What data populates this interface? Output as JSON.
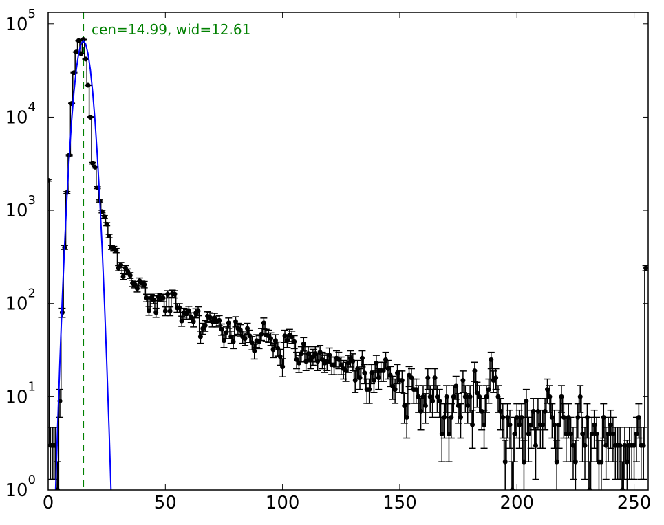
{
  "chart_data": {
    "type": "errorbar",
    "annotation": "cen=14.99, wid=12.61",
    "annotation_color": "#008000",
    "xlim": [
      0,
      256
    ],
    "xticks": [
      0,
      50,
      100,
      150,
      200,
      250
    ],
    "ylim": [
      1,
      133000
    ],
    "log_y": true,
    "yticks": [
      {
        "value": 1,
        "label": "10^0"
      },
      {
        "value": 10,
        "label": "10^1"
      },
      {
        "value": 100,
        "label": "10^2"
      },
      {
        "value": 1000,
        "label": "10^3"
      },
      {
        "value": 10000,
        "label": "10^4"
      },
      {
        "value": 100000,
        "label": "10^5"
      }
    ],
    "vline": {
      "x": 14.99,
      "color": "#008000",
      "dashed": true
    },
    "series": [
      {
        "kind": "errorbar",
        "color": "#000000",
        "x": [
          0,
          1,
          2,
          3,
          4,
          5,
          6,
          7,
          8,
          9,
          10,
          11,
          12,
          13,
          14,
          15,
          16,
          17,
          18,
          19,
          20,
          21,
          22,
          23,
          24,
          25,
          26,
          27,
          28,
          29,
          30,
          31,
          32,
          33,
          34,
          35,
          36,
          37,
          38,
          39,
          40,
          41,
          42,
          43,
          44,
          45,
          46,
          47,
          48,
          49,
          50,
          51,
          52,
          53,
          54,
          55,
          56,
          57,
          58,
          59,
          60,
          61,
          62,
          63,
          64,
          65,
          66,
          67,
          68,
          69,
          70,
          71,
          72,
          73,
          74,
          75,
          76,
          77,
          78,
          79,
          80,
          81,
          82,
          83,
          84,
          85,
          86,
          87,
          88,
          89,
          90,
          91,
          92,
          93,
          94,
          95,
          96,
          97,
          98,
          99,
          100,
          101,
          102,
          103,
          104,
          105,
          106,
          107,
          108,
          109,
          110,
          111,
          112,
          113,
          114,
          115,
          116,
          117,
          118,
          119,
          120,
          121,
          122,
          123,
          124,
          125,
          126,
          127,
          128,
          129,
          130,
          131,
          132,
          133,
          134,
          135,
          136,
          137,
          138,
          139,
          140,
          141,
          142,
          143,
          144,
          145,
          146,
          147,
          148,
          149,
          150,
          151,
          152,
          153,
          154,
          155,
          156,
          157,
          158,
          159,
          160,
          161,
          162,
          163,
          164,
          165,
          166,
          167,
          168,
          169,
          170,
          171,
          172,
          173,
          174,
          175,
          176,
          177,
          178,
          179,
          180,
          181,
          182,
          183,
          184,
          185,
          186,
          187,
          188,
          189,
          190,
          191,
          192,
          193,
          194,
          195,
          196,
          197,
          198,
          199,
          200,
          201,
          202,
          203,
          204,
          205,
          206,
          207,
          208,
          209,
          210,
          211,
          212,
          213,
          214,
          215,
          216,
          217,
          218,
          219,
          220,
          221,
          222,
          223,
          224,
          225,
          226,
          227,
          228,
          229,
          230,
          231,
          232,
          233,
          234,
          235,
          236,
          237,
          238,
          239,
          240,
          241,
          242,
          243,
          244,
          245,
          246,
          247,
          248,
          249,
          250,
          251,
          252,
          253,
          254,
          255
        ],
        "values": [
          2100,
          3,
          3,
          3,
          1,
          9,
          80,
          400,
          1550,
          3900,
          14000,
          30000,
          50000,
          66000,
          48000,
          68000,
          42000,
          22000,
          10000,
          3200,
          2900,
          1750,
          1260,
          970,
          850,
          710,
          530,
          400,
          390,
          370,
          240,
          260,
          195,
          240,
          220,
          200,
          165,
          160,
          145,
          175,
          165,
          160,
          115,
          84,
          115,
          110,
          80,
          118,
          115,
          115,
          83,
          126,
          83,
          128,
          126,
          90,
          90,
          65,
          80,
          77,
          84,
          71,
          64,
          79,
          83,
          44,
          54,
          58,
          73,
          71,
          64,
          70,
          64,
          66,
          53,
          40,
          49,
          62,
          44,
          39,
          64,
          54,
          52,
          44,
          42,
          54,
          45,
          38,
          31,
          40,
          39,
          47,
          62,
          46,
          45,
          42,
          32,
          40,
          33,
          27,
          21,
          45,
          40,
          46,
          44,
          39,
          25,
          23,
          29,
          37,
          24,
          29,
          25,
          27,
          29,
          24,
          30,
          25,
          23,
          24,
          28,
          22,
          22,
          26,
          25,
          22,
          20,
          19,
          23,
          26,
          24,
          15,
          20,
          16,
          26,
          18,
          12,
          12,
          18,
          15,
          23,
          16,
          19,
          19,
          25,
          20,
          17,
          13,
          12,
          18,
          15,
          15,
          8,
          6,
          17,
          16,
          12,
          12,
          10,
          7,
          10,
          8,
          16,
          10,
          9,
          16,
          10,
          9,
          4,
          6,
          10,
          4,
          6,
          10,
          13,
          8,
          6,
          15,
          10,
          8,
          10,
          5,
          19,
          11,
          10,
          7,
          5,
          10,
          12,
          25,
          15,
          16,
          10,
          7,
          6,
          2,
          6,
          5,
          1,
          4,
          6,
          5,
          6,
          2,
          9,
          4,
          5,
          7,
          3,
          7,
          5,
          5,
          7,
          12,
          10,
          6,
          5,
          2,
          5,
          10,
          6,
          4,
          6,
          4,
          3,
          2,
          6,
          10,
          4,
          3,
          6,
          1,
          4,
          5,
          4,
          2,
          2,
          6,
          3,
          4,
          5,
          4,
          3,
          3,
          3,
          1,
          3,
          2,
          3,
          3,
          3,
          4,
          6,
          3,
          3,
          240
        ],
        "errors": [
          46,
          1.7,
          1.7,
          1.7,
          1,
          3,
          8.9,
          20,
          39,
          62,
          118,
          173,
          224,
          257,
          219,
          261,
          205,
          148,
          100,
          57,
          54,
          42,
          35,
          31,
          29,
          27,
          23,
          20,
          20,
          19,
          15.5,
          16,
          14,
          15.5,
          15,
          14,
          13,
          12.6,
          12,
          13,
          13,
          12.6,
          10.7,
          9.2,
          10.7,
          10.5,
          8.9,
          10.9,
          10.7,
          10.7,
          9.1,
          11.2,
          9.1,
          11.3,
          11.2,
          9.5,
          9.5,
          8.1,
          8.9,
          8.8,
          9.2,
          8.4,
          8,
          8.9,
          9.1,
          6.6,
          7.3,
          7.6,
          8.5,
          8.4,
          8,
          8.4,
          8,
          8.1,
          7.3,
          6.3,
          7,
          7.9,
          6.6,
          6.2,
          8,
          7.3,
          7.2,
          6.6,
          6.5,
          7.3,
          6.7,
          6.2,
          5.6,
          6.3,
          6.2,
          6.9,
          7.9,
          6.8,
          6.7,
          6.5,
          5.7,
          6.3,
          5.7,
          5.2,
          4.6,
          6.7,
          6.3,
          6.8,
          6.6,
          6.2,
          5,
          4.8,
          5.4,
          6.1,
          4.9,
          5.4,
          5,
          5.2,
          5.4,
          4.9,
          5.5,
          5,
          4.8,
          4.9,
          5.3,
          4.7,
          4.7,
          5.1,
          5,
          4.7,
          4.5,
          4.4,
          4.8,
          5.1,
          4.9,
          3.9,
          4.5,
          4,
          5.1,
          4.2,
          3.5,
          3.5,
          4.2,
          3.9,
          4.8,
          4,
          4.4,
          4.4,
          5,
          4.5,
          4.1,
          3.6,
          3.5,
          4.2,
          3.9,
          3.9,
          2.8,
          2.4,
          4.1,
          4,
          3.5,
          3.5,
          3.2,
          2.6,
          3.2,
          2.8,
          4,
          3.2,
          3,
          4,
          3.2,
          3,
          2,
          2.4,
          3.2,
          2,
          2.4,
          3.2,
          3.6,
          2.8,
          2.4,
          3.9,
          3.2,
          2.8,
          3.2,
          2.2,
          4.4,
          3.3,
          3.2,
          2.6,
          2.2,
          3.2,
          3.5,
          5,
          3.9,
          4,
          3.2,
          2.6,
          2.4,
          1.4,
          2.4,
          2.2,
          1,
          2,
          2.4,
          2.2,
          2.4,
          1.4,
          3,
          2,
          2.2,
          2.6,
          1.7,
          2.6,
          2.2,
          2.2,
          2.6,
          3.5,
          3.2,
          2.4,
          2.2,
          1.4,
          2.2,
          3.2,
          2.4,
          2,
          2.4,
          2,
          1.7,
          1.4,
          2.4,
          3.2,
          2,
          1.7,
          2.4,
          1,
          2,
          2.2,
          2,
          1.4,
          1.4,
          2.4,
          1.7,
          2,
          2.2,
          2,
          1.7,
          1.7,
          1.7,
          1,
          1.7,
          1.4,
          1.7,
          1.7,
          1.7,
          2,
          2.4,
          1.7,
          1.7,
          15.5
        ]
      },
      {
        "kind": "line",
        "color": "#0000ff",
        "x": [
          3,
          4,
          5,
          6,
          7,
          8,
          9,
          10,
          11,
          12,
          13,
          14,
          15,
          16,
          17,
          18,
          19,
          20,
          21,
          22,
          23,
          24,
          25,
          26,
          27
        ],
        "values": [
          0.74,
          4.5,
          24,
          109,
          419,
          1375,
          3830,
          9160,
          18700,
          32500,
          48200,
          61100,
          66000,
          60900,
          47900,
          32200,
          18400,
          9040,
          3760,
          1335,
          407,
          105,
          23,
          4.4,
          0.71
        ]
      }
    ]
  }
}
